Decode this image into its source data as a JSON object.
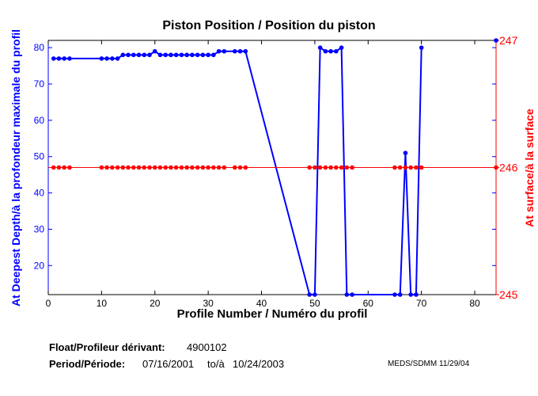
{
  "chart_data": {
    "type": "line",
    "title": "Piston Position / Position du piston",
    "xlabel": "Profile Number / Numéro du profil",
    "ylabel": "At Deepest Depth/à la profondeur maximale du profil",
    "ylabel_right": "At surface/à la surface",
    "xlim": [
      0,
      84
    ],
    "ylim": [
      12,
      82
    ],
    "ylim_right": [
      245,
      247
    ],
    "xticks": [
      0,
      10,
      20,
      30,
      40,
      50,
      60,
      70,
      80
    ],
    "yticks": [
      20,
      30,
      40,
      50,
      60,
      70,
      80
    ],
    "yticks_right": [
      245,
      246,
      247
    ],
    "grid": false,
    "series": [
      {
        "name": "At Deepest Depth",
        "axis": "left",
        "color": "#0000ff",
        "x": [
          1,
          2,
          3,
          4,
          10,
          11,
          12,
          13,
          14,
          15,
          16,
          17,
          18,
          19,
          20,
          21,
          22,
          23,
          24,
          25,
          26,
          27,
          28,
          29,
          30,
          31,
          32,
          33,
          35,
          36,
          37,
          49,
          50,
          51,
          52,
          53,
          54,
          55,
          56,
          57,
          65,
          66,
          67,
          68,
          69,
          70,
          84
        ],
        "y": [
          77,
          77,
          77,
          77,
          77,
          77,
          77,
          77,
          78,
          78,
          78,
          78,
          78,
          78,
          79,
          78,
          78,
          78,
          78,
          78,
          78,
          78,
          78,
          78,
          78,
          78,
          79,
          79,
          79,
          79,
          79,
          12,
          12,
          80,
          79,
          79,
          79,
          80,
          12,
          12,
          12,
          12,
          51,
          12,
          12,
          80,
          82
        ]
      },
      {
        "name": "At surface",
        "axis": "right",
        "color": "#ff0000",
        "x": [
          1,
          2,
          3,
          4,
          10,
          11,
          12,
          13,
          14,
          15,
          16,
          17,
          18,
          19,
          20,
          21,
          22,
          23,
          24,
          25,
          26,
          27,
          28,
          29,
          30,
          31,
          32,
          33,
          35,
          36,
          37,
          49,
          50,
          51,
          52,
          53,
          54,
          55,
          56,
          57,
          65,
          66,
          67,
          68,
          69,
          70,
          84
        ],
        "y": [
          246,
          246,
          246,
          246,
          246,
          246,
          246,
          246,
          246,
          246,
          246,
          246,
          246,
          246,
          246,
          246,
          246,
          246,
          246,
          246,
          246,
          246,
          246,
          246,
          246,
          246,
          246,
          246,
          246,
          246,
          246,
          246,
          246,
          246,
          246,
          246,
          246,
          246,
          246,
          246,
          246,
          246,
          246,
          246,
          246,
          246,
          246
        ]
      }
    ]
  },
  "footer": {
    "float_label": "Float/Profileur dérivant:",
    "float_value": "4900102",
    "period_label": "Period/Période:",
    "period_start": "07/16/2001",
    "period_to": "to/à",
    "period_end": "10/24/2003",
    "credit": "MEDS/SDMM  11/29/04"
  }
}
